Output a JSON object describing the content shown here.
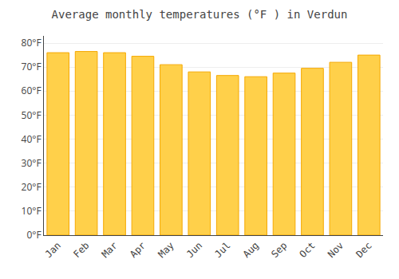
{
  "chart_data": {
    "type": "bar",
    "title": "Average monthly temperatures (°F ) in Verdun",
    "categories": [
      "Jan",
      "Feb",
      "Mar",
      "Apr",
      "May",
      "Jun",
      "Jul",
      "Aug",
      "Sep",
      "Oct",
      "Nov",
      "Dec"
    ],
    "values": [
      76.0,
      76.5,
      76.0,
      74.5,
      71.0,
      68.0,
      66.5,
      66.0,
      67.5,
      69.5,
      72.0,
      75.0
    ],
    "color": "#FFD04A",
    "ylim": [
      0,
      83
    ],
    "yticks": [
      {
        "value": 0,
        "label": "0°F"
      },
      {
        "value": 10,
        "label": "10°F"
      },
      {
        "value": 20,
        "label": "20°F"
      },
      {
        "value": 30,
        "label": "30°F"
      },
      {
        "value": 40,
        "label": "40°F"
      },
      {
        "value": 50,
        "label": "50°F"
      },
      {
        "value": 60,
        "label": "60°F"
      },
      {
        "value": 70,
        "label": "70°F"
      },
      {
        "value": 80,
        "label": "80°F"
      }
    ],
    "grid": true
  }
}
